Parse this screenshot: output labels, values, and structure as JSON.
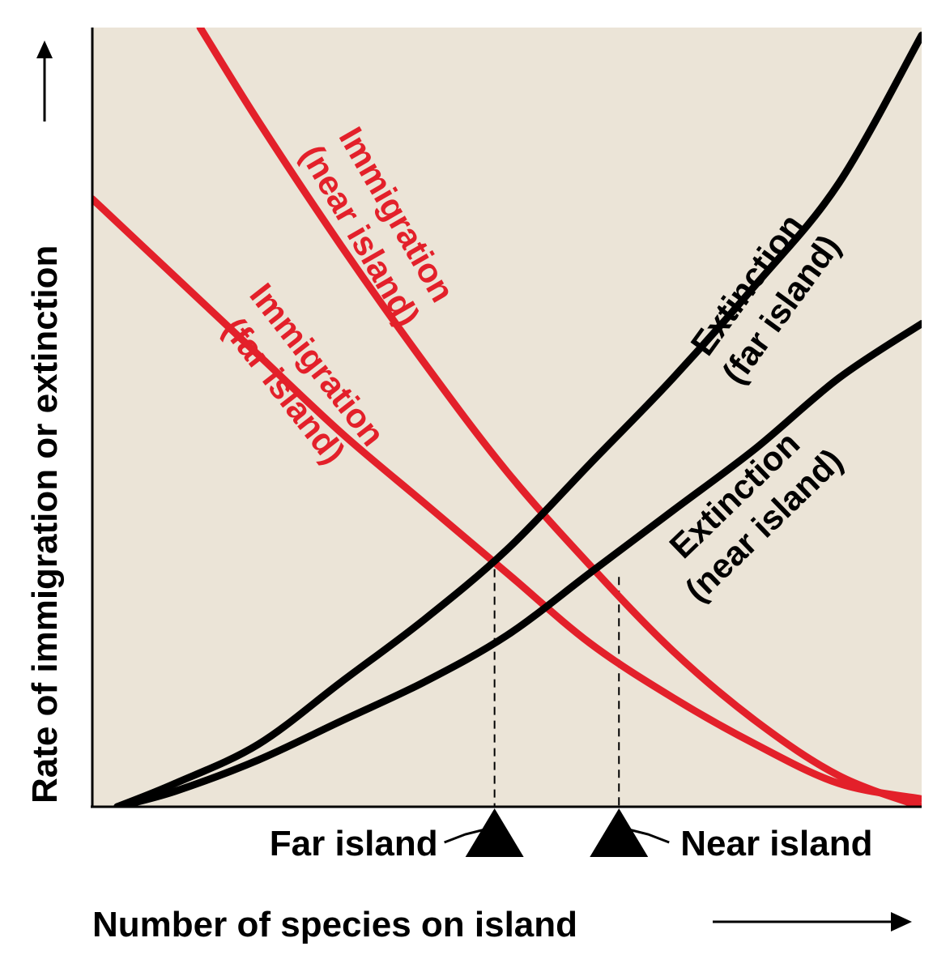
{
  "chart_data": {
    "type": "line",
    "title": "",
    "xlabel": "Number of species on island",
    "ylabel": "Rate of immigration or extinction",
    "xlim": [
      0,
      1
    ],
    "ylim": [
      0,
      1
    ],
    "grid": false,
    "legend": "none",
    "colors": {
      "immigration": "#e3202a",
      "extinction": "#000000",
      "plot_background": "#ebe4d7"
    },
    "series": [
      {
        "name": "Immigration (near island)",
        "label_lines": [
          "Immigration",
          "(near island)"
        ],
        "color": "#e3202a",
        "x": [
          0.13,
          0.2,
          0.3,
          0.4,
          0.5,
          0.6,
          0.7,
          0.8,
          0.9,
          1.0
        ],
        "y": [
          1.0,
          0.88,
          0.72,
          0.57,
          0.43,
          0.31,
          0.2,
          0.11,
          0.04,
          0.0
        ]
      },
      {
        "name": "Immigration (far island)",
        "label_lines": [
          "Immigration",
          "(far island)"
        ],
        "color": "#e3202a",
        "x": [
          0.0,
          0.1,
          0.2,
          0.3,
          0.4,
          0.5,
          0.6,
          0.7,
          0.8,
          0.9,
          1.0
        ],
        "y": [
          0.78,
          0.68,
          0.58,
          0.48,
          0.39,
          0.3,
          0.21,
          0.14,
          0.08,
          0.03,
          0.01
        ]
      },
      {
        "name": "Extinction (far island)",
        "label_lines": [
          "Extinction",
          "(far island)"
        ],
        "color": "#000000",
        "x": [
          0.03,
          0.1,
          0.2,
          0.3,
          0.4,
          0.5,
          0.6,
          0.7,
          0.8,
          0.9,
          1.0
        ],
        "y": [
          0.0,
          0.03,
          0.08,
          0.16,
          0.24,
          0.33,
          0.44,
          0.55,
          0.67,
          0.8,
          0.99
        ]
      },
      {
        "name": "Extinction (near island)",
        "label_lines": [
          "Extinction",
          "(near island)"
        ],
        "color": "#000000",
        "x": [
          0.03,
          0.1,
          0.2,
          0.3,
          0.4,
          0.5,
          0.6,
          0.7,
          0.8,
          0.9,
          1.0
        ],
        "y": [
          0.0,
          0.02,
          0.06,
          0.11,
          0.16,
          0.22,
          0.3,
          0.38,
          0.46,
          0.55,
          0.62
        ]
      }
    ],
    "equilibria": [
      {
        "label": "Far island",
        "x": 0.485,
        "y": 0.305
      },
      {
        "label": "Near island",
        "x": 0.635,
        "y": 0.295
      }
    ]
  }
}
